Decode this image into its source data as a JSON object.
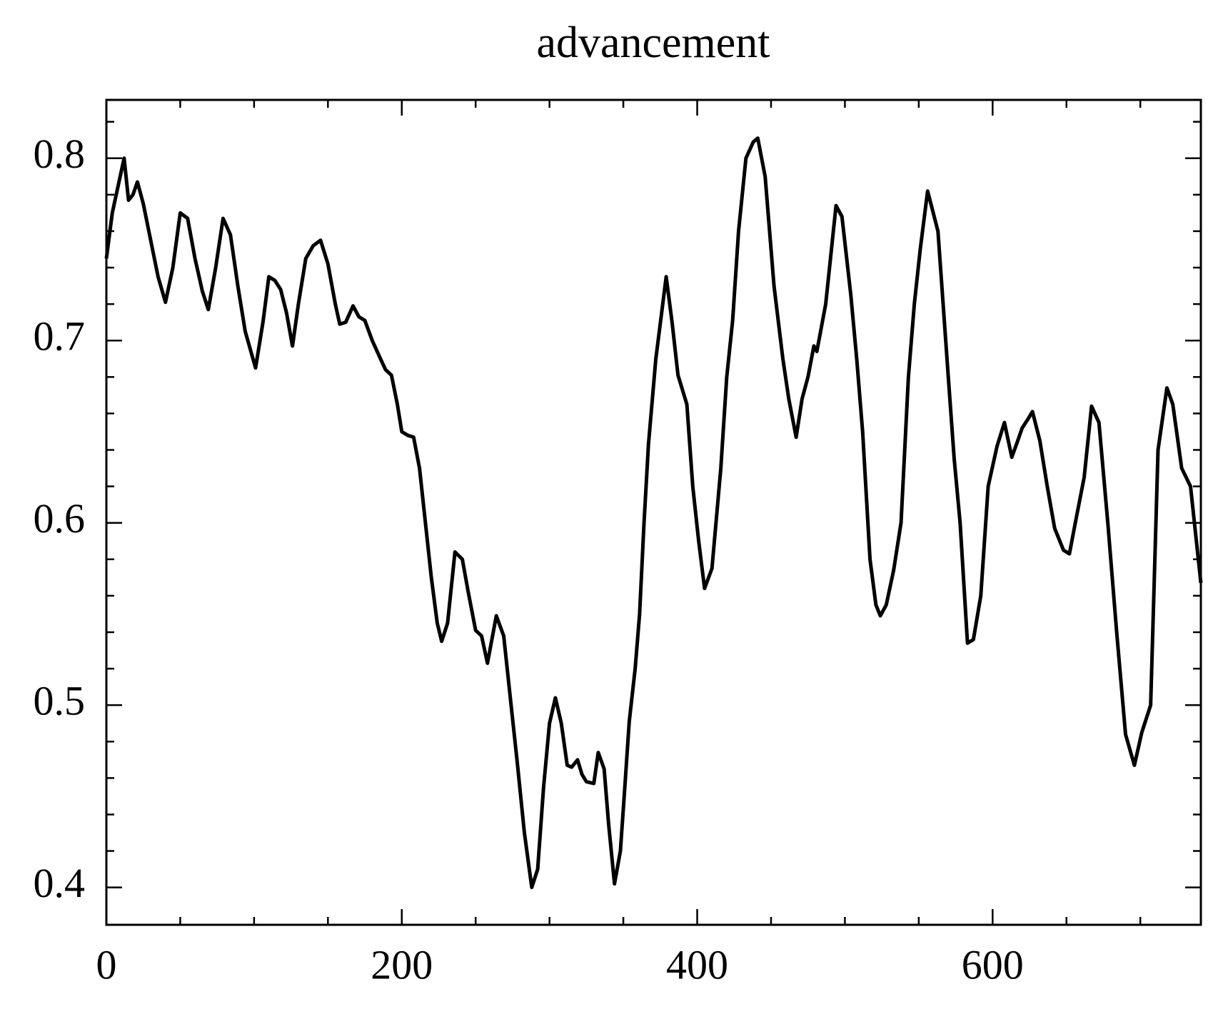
{
  "chart_data": {
    "type": "line",
    "title": "advancement",
    "x": [
      0,
      4,
      8,
      12,
      15,
      18,
      21,
      25,
      30,
      35,
      40,
      45,
      50,
      55,
      60,
      65,
      69,
      74,
      79,
      84,
      89,
      94,
      101,
      106,
      110,
      114,
      118,
      122,
      126,
      130,
      135,
      140,
      145,
      150,
      155,
      158,
      162,
      167,
      171,
      175,
      180,
      185,
      189,
      193,
      197,
      200,
      204,
      208,
      212,
      216,
      220,
      224,
      227,
      231,
      236,
      241,
      245,
      250,
      254,
      258,
      264,
      269,
      274,
      278,
      283,
      288,
      292,
      296,
      300,
      304,
      308,
      312,
      315,
      319,
      322,
      325,
      330,
      333,
      337,
      340,
      344,
      348,
      351,
      354,
      358,
      361,
      364,
      367,
      372,
      379,
      383,
      387,
      393,
      397,
      401,
      405,
      410,
      416,
      420,
      424,
      428,
      433,
      438,
      441,
      446,
      452,
      458,
      462,
      467,
      471,
      475,
      479,
      481,
      487,
      494,
      498,
      504,
      508,
      512,
      517,
      521,
      524,
      528,
      533,
      538,
      543,
      547,
      551,
      556,
      563,
      570,
      574,
      578,
      583,
      587,
      592,
      597,
      603,
      608,
      613,
      617,
      620,
      624,
      627,
      632,
      637,
      642,
      648,
      652,
      656,
      662,
      667,
      672,
      678,
      684,
      690,
      696,
      701,
      707,
      712,
      718,
      722,
      728,
      734,
      741
    ],
    "values": [
      0.745,
      0.77,
      0.785,
      0.8,
      0.777,
      0.78,
      0.787,
      0.775,
      0.755,
      0.735,
      0.721,
      0.74,
      0.77,
      0.767,
      0.745,
      0.727,
      0.717,
      0.74,
      0.767,
      0.758,
      0.73,
      0.705,
      0.685,
      0.71,
      0.735,
      0.733,
      0.728,
      0.715,
      0.697,
      0.72,
      0.745,
      0.752,
      0.755,
      0.742,
      0.72,
      0.709,
      0.71,
      0.719,
      0.713,
      0.711,
      0.7,
      0.691,
      0.684,
      0.681,
      0.665,
      0.65,
      0.648,
      0.647,
      0.63,
      0.6,
      0.57,
      0.545,
      0.535,
      0.545,
      0.584,
      0.58,
      0.562,
      0.541,
      0.538,
      0.523,
      0.549,
      0.538,
      0.5,
      0.47,
      0.43,
      0.4,
      0.41,
      0.455,
      0.49,
      0.504,
      0.49,
      0.467,
      0.466,
      0.47,
      0.462,
      0.458,
      0.457,
      0.474,
      0.465,
      0.435,
      0.402,
      0.42,
      0.455,
      0.491,
      0.52,
      0.55,
      0.6,
      0.643,
      0.69,
      0.735,
      0.71,
      0.681,
      0.665,
      0.62,
      0.59,
      0.564,
      0.575,
      0.63,
      0.68,
      0.711,
      0.76,
      0.8,
      0.809,
      0.811,
      0.79,
      0.73,
      0.69,
      0.668,
      0.647,
      0.668,
      0.68,
      0.697,
      0.694,
      0.72,
      0.774,
      0.768,
      0.725,
      0.69,
      0.65,
      0.58,
      0.555,
      0.549,
      0.555,
      0.574,
      0.6,
      0.68,
      0.72,
      0.75,
      0.782,
      0.76,
      0.68,
      0.635,
      0.6,
      0.534,
      0.536,
      0.56,
      0.62,
      0.642,
      0.655,
      0.636,
      0.645,
      0.652,
      0.657,
      0.661,
      0.645,
      0.62,
      0.597,
      0.585,
      0.583,
      0.6,
      0.625,
      0.664,
      0.655,
      0.6,
      0.54,
      0.484,
      0.467,
      0.485,
      0.5,
      0.64,
      0.674,
      0.665,
      0.63,
      0.62,
      0.567
    ],
    "color": "#000000",
    "xlim": [
      0,
      741
    ],
    "ylim": [
      0.3795,
      0.832
    ],
    "xticks": [
      0,
      200,
      400,
      600
    ],
    "yticks": [
      0.4,
      0.5,
      0.6,
      0.7,
      0.8
    ],
    "xminorticks": [
      50,
      100,
      150,
      250,
      300,
      350,
      450,
      500,
      550,
      650,
      700
    ],
    "yminorticks": [
      0.42,
      0.44,
      0.46,
      0.48,
      0.52,
      0.54,
      0.56,
      0.58,
      0.62,
      0.64,
      0.66,
      0.68,
      0.72,
      0.74,
      0.76,
      0.78,
      0.8,
      0.82
    ]
  }
}
